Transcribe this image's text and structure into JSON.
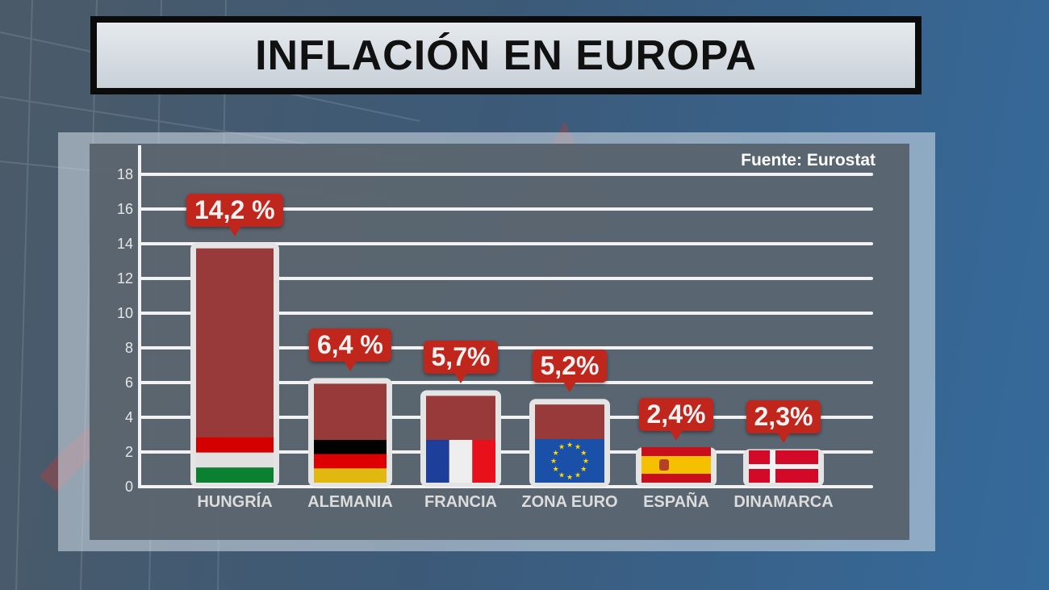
{
  "title": "INFLACIÓN EN EUROPA",
  "source": "Fuente: Eurostat",
  "chart_data": {
    "type": "bar",
    "title": "INFLACIÓN EN EUROPA",
    "xlabel": "",
    "ylabel": "",
    "ylim": [
      0,
      18
    ],
    "yticks": [
      0,
      2,
      4,
      6,
      8,
      10,
      12,
      14,
      16,
      18
    ],
    "grid": true,
    "categories": [
      "HUNGRÍA",
      "ALEMANIA",
      "FRANCIA",
      "ZONA EURO",
      "ESPAÑA",
      "DINAMARCA"
    ],
    "values": [
      14.2,
      6.4,
      5.7,
      5.2,
      2.4,
      2.3
    ],
    "data_labels": [
      "14,2 %",
      "6,4 %",
      "5,7%",
      "5,2%",
      "2,4%",
      "2,3%"
    ],
    "flags": [
      "hungary",
      "germany",
      "france",
      "eu",
      "spain",
      "denmark"
    ],
    "bar_color": "#983a3a",
    "label_color": "#c0261b"
  }
}
